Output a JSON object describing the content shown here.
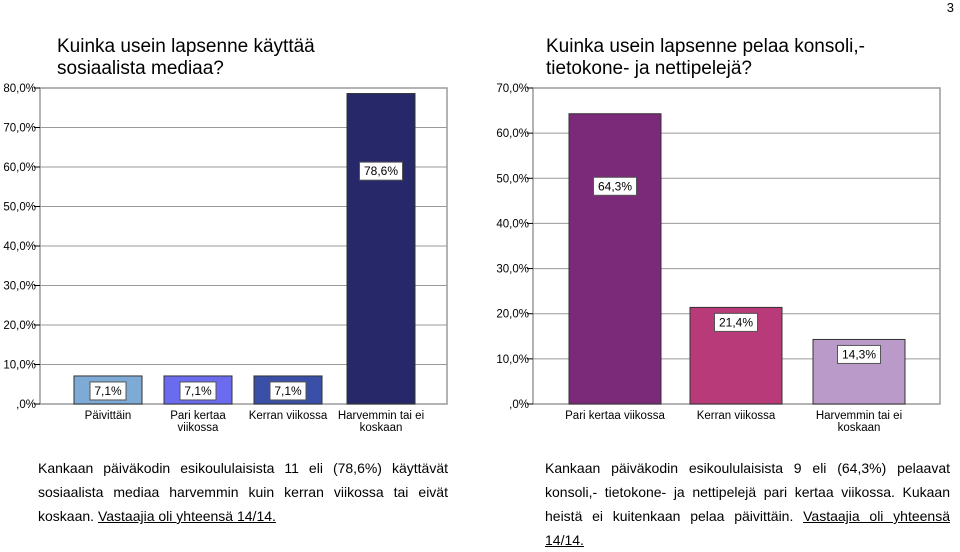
{
  "page_number": "3",
  "left": {
    "title_line1": "Kuinka usein lapsenne käyttää",
    "title_line2": "sosiaalista mediaa?",
    "caption_text": "Kankaan päiväkodin esikoululaisista 11 eli (78,6%) käyttävät sosiaalista mediaa harvemmin kuin kerran viikossa tai eivät koskaan. ",
    "caption_link": "Vastaajia oli yhteensä 14/14."
  },
  "right": {
    "title_line1": "Kuinka usein lapsenne pelaa konsoli,-",
    "title_line2": "tietokone- ja nettipelejä?",
    "caption_text": "Kankaan päiväkodin esikoululaisista 9 eli (64,3%) pelaavat konsoli,- tietokone- ja nettipelejä pari kertaa viikossa. Kukaan heistä ei kuitenkaan pelaa päivittäin. ",
    "caption_link": "Vastaajia oli yhteensä 14/14."
  },
  "chart_data": [
    {
      "type": "bar",
      "categories": [
        [
          "Päivittäin"
        ],
        [
          "Pari kertaa",
          "viikossa"
        ],
        [
          "Kerran viikossa"
        ],
        [
          "Harvemmin tai ei",
          "koskaan"
        ]
      ],
      "values": [
        7.1,
        7.1,
        7.1,
        78.6
      ],
      "data_labels": [
        "7,1%",
        "7,1%",
        "7,1%",
        "78,6%"
      ],
      "colors": [
        "#7eaad6",
        "#6b6bf0",
        "#3a4fa8",
        "#26286a"
      ],
      "yticks": [
        ",0%",
        "10,0%",
        "20,0%",
        "30,0%",
        "40,0%",
        "50,0%",
        "60,0%",
        "70,0%",
        "80,0%"
      ],
      "ylim": [
        0,
        80
      ],
      "grid": true
    },
    {
      "type": "bar",
      "categories": [
        [
          "Pari kertaa viikossa"
        ],
        [
          "Kerran viikossa"
        ],
        [
          "Harvemmin tai ei",
          "koskaan"
        ]
      ],
      "values": [
        64.3,
        21.4,
        14.3
      ],
      "data_labels": [
        "64,3%",
        "21,4%",
        "14,3%"
      ],
      "colors": [
        "#7a2a78",
        "#b83a78",
        "#b99ac8"
      ],
      "yticks": [
        ",0%",
        "10,0%",
        "20,0%",
        "30,0%",
        "40,0%",
        "50,0%",
        "60,0%",
        "70,0%"
      ],
      "ylim": [
        0,
        70
      ],
      "grid": true
    }
  ]
}
